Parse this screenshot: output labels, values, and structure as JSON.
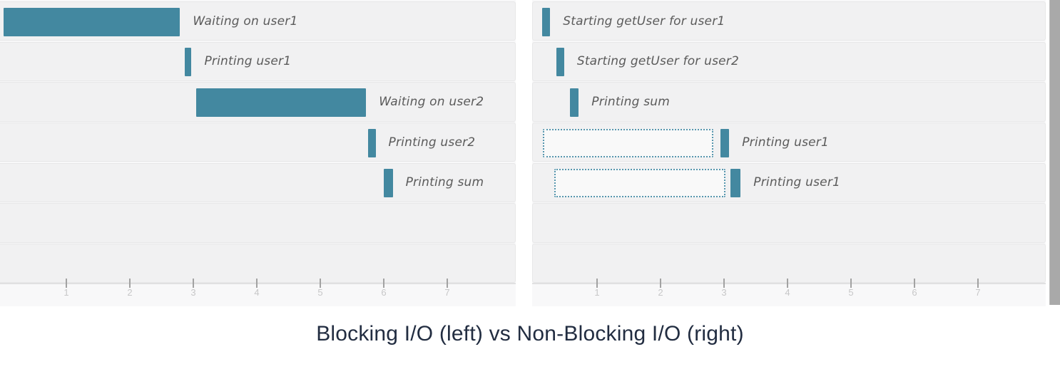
{
  "caption": "Blocking I/O (left) vs Non-Blocking I/O (right)",
  "colors": {
    "bar": "#4388a0",
    "dashed_border": "#5796ae",
    "row_bg": "#f1f1f2",
    "row_border": "#e7e7e8",
    "label_text": "#5b5b5b",
    "tick_mark": "#a2a2a2",
    "tick_label": "#c7c7c8",
    "caption_text": "#222d41",
    "scrollbar": "#a9a9a9"
  },
  "chart_data": [
    {
      "type": "bar",
      "subtype": "timeline-gantt",
      "title": "Blocking I/O",
      "position": "left",
      "xlabel": "",
      "ylabel": "",
      "xlim": [
        0,
        8.1
      ],
      "x_ticks": [
        1,
        2,
        3,
        4,
        5,
        6,
        7
      ],
      "grid": false,
      "legend": "none",
      "rows": [
        {
          "label": "Waiting on user1",
          "bars": [
            {
              "start": 0,
              "end": 2.78,
              "style": "solid"
            }
          ]
        },
        {
          "label": "Printing user1",
          "bars": [
            {
              "start": 2.85,
              "end": 2.96,
              "style": "solid"
            }
          ]
        },
        {
          "label": "Waiting on user2",
          "bars": [
            {
              "start": 3.03,
              "end": 5.71,
              "style": "solid"
            }
          ]
        },
        {
          "label": "Printing user2",
          "bars": [
            {
              "start": 5.74,
              "end": 5.86,
              "style": "solid"
            }
          ]
        },
        {
          "label": "Printing sum",
          "bars": [
            {
              "start": 5.99,
              "end": 6.13,
              "style": "solid"
            }
          ]
        },
        {
          "label": "",
          "bars": []
        },
        {
          "label": "",
          "bars": []
        }
      ]
    },
    {
      "type": "bar",
      "subtype": "timeline-gantt",
      "title": "Non-Blocking I/O",
      "position": "right",
      "xlabel": "",
      "ylabel": "",
      "xlim": [
        0,
        8.05
      ],
      "x_ticks": [
        1,
        2,
        3,
        4,
        5,
        6,
        7
      ],
      "grid": false,
      "legend": "none",
      "rows": [
        {
          "label": "Starting getUser for user1",
          "bars": [
            {
              "start": 0.12,
              "end": 0.25,
              "style": "solid"
            }
          ]
        },
        {
          "label": "Starting getUser for user2",
          "bars": [
            {
              "start": 0.35,
              "end": 0.47,
              "style": "solid"
            }
          ]
        },
        {
          "label": "Printing sum",
          "bars": [
            {
              "start": 0.56,
              "end": 0.7,
              "style": "solid"
            }
          ]
        },
        {
          "label": "Printing user1",
          "bars": [
            {
              "start": 0.13,
              "end": 2.82,
              "style": "dashed"
            },
            {
              "start": 2.93,
              "end": 3.07,
              "style": "solid"
            }
          ]
        },
        {
          "label": "Printing user1",
          "bars": [
            {
              "start": 0.31,
              "end": 3.01,
              "style": "dashed"
            },
            {
              "start": 3.09,
              "end": 3.25,
              "style": "solid"
            }
          ]
        },
        {
          "label": "",
          "bars": []
        },
        {
          "label": "",
          "bars": []
        }
      ]
    }
  ]
}
